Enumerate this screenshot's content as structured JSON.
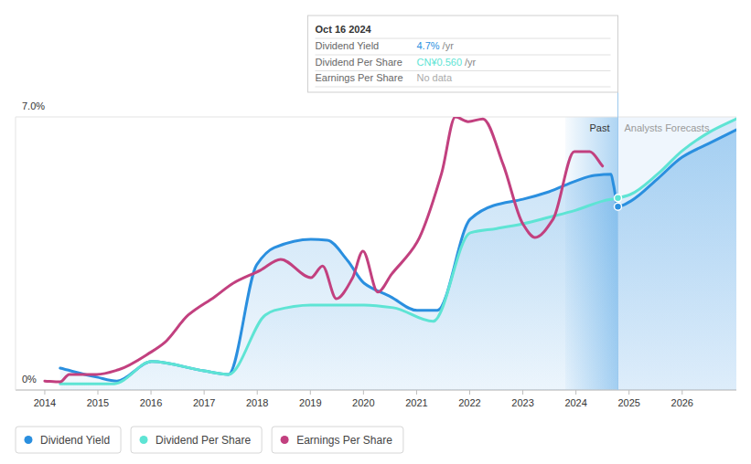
{
  "chart_data": {
    "type": "line",
    "xlim": [
      2013.45,
      2027.02
    ],
    "xticks": [
      2014,
      2015,
      2016,
      2017,
      2018,
      2019,
      2020,
      2021,
      2022,
      2023,
      2024,
      2025,
      2026
    ],
    "ylim": [
      0,
      7
    ],
    "yticks": [
      {
        "value": 0,
        "label": "0%"
      },
      {
        "value": 7,
        "label": "7.0%"
      }
    ],
    "grid": true,
    "legend": "bottom",
    "series": [
      {
        "name": "Dividend Yield",
        "color": "#2a8fdf",
        "type": "area",
        "x": [
          2014.29,
          2014.98,
          2015.36,
          2016.01,
          2017.0,
          2017.46,
          2017.99,
          2018.32,
          2019.01,
          2019.32,
          2019.7,
          2020.01,
          2020.51,
          2021.01,
          2021.39,
          2022.01,
          2022.45,
          2023.0,
          2023.49,
          2024.0,
          2024.35,
          2024.66,
          2024.71,
          2024.79,
          2025.04,
          2025.55,
          2026.0,
          2026.5,
          2027.02
        ],
        "values": [
          0.56,
          0.33,
          0.23,
          0.73,
          0.49,
          0.4,
          3.21,
          3.65,
          3.86,
          3.84,
          3.32,
          2.74,
          2.39,
          2.04,
          2.04,
          4.38,
          4.73,
          4.89,
          5.08,
          5.36,
          5.5,
          5.53,
          5.24,
          4.7,
          4.85,
          5.43,
          5.97,
          6.32,
          6.67
        ]
      },
      {
        "name": "Dividend Per Share",
        "color": "#5ee4d4",
        "type": "area",
        "x": [
          2014.29,
          2015.31,
          2016.01,
          2017.0,
          2017.46,
          2018.15,
          2018.32,
          2019.01,
          2020.01,
          2020.56,
          2021.31,
          2022.01,
          2022.51,
          2023.0,
          2023.5,
          2024.0,
          2024.52,
          2024.79,
          2025.02,
          2025.55,
          2026.0,
          2026.5,
          2027.02
        ],
        "values": [
          0.16,
          0.16,
          0.73,
          0.49,
          0.4,
          1.92,
          2.04,
          2.18,
          2.18,
          2.11,
          1.76,
          4.03,
          4.14,
          4.26,
          4.43,
          4.61,
          4.85,
          4.92,
          5.01,
          5.55,
          6.13,
          6.6,
          6.95
        ]
      },
      {
        "name": "Earnings Per Share",
        "color": "#c2407f",
        "type": "line",
        "x": [
          2014.0,
          2014.29,
          2014.46,
          2014.98,
          2015.39,
          2016.01,
          2016.26,
          2016.7,
          2017.2,
          2017.55,
          2018.06,
          2018.44,
          2019.01,
          2019.23,
          2019.49,
          2019.79,
          2019.99,
          2020.27,
          2020.53,
          2021.01,
          2021.47,
          2021.73,
          2021.97,
          2022.25,
          2022.63,
          2023.0,
          2023.23,
          2023.57,
          2023.97,
          2024.26,
          2024.5
        ],
        "values": [
          0.23,
          0.21,
          0.4,
          0.4,
          0.52,
          0.98,
          1.22,
          1.92,
          2.39,
          2.74,
          3.07,
          3.35,
          2.88,
          3.18,
          2.34,
          2.86,
          3.56,
          2.51,
          2.97,
          3.79,
          5.55,
          7.0,
          6.88,
          6.95,
          5.78,
          4.26,
          3.91,
          4.38,
          6.11,
          6.11,
          5.74
        ]
      }
    ],
    "annotations": [
      {
        "text": "Past",
        "x_start": 2023.8,
        "x_end": 2024.79
      },
      {
        "text": "Analysts Forecasts",
        "x_start": 2024.79,
        "x_end": 2027.02
      }
    ],
    "tooltip": {
      "title": "Oct 16 2024",
      "x": 2024.79,
      "rows": [
        {
          "label": "Dividend Yield",
          "value": "4.7%",
          "unit": "/yr"
        },
        {
          "label": "Dividend Per Share",
          "value": "CN¥0.560",
          "unit": "/yr"
        },
        {
          "label": "Earnings Per Share",
          "value": "No data"
        }
      ]
    }
  }
}
